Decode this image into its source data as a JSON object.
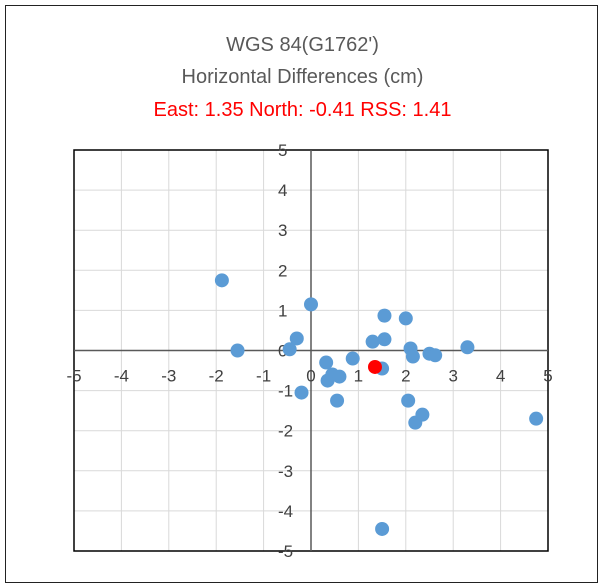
{
  "chart_data": {
    "type": "scatter",
    "title": "WGS 84(G1762')",
    "subtitle": "Horizontal Differences (cm)",
    "summary": "East: 1.35 North: -0.41 RSS: 1.41",
    "xlim": [
      -5,
      5
    ],
    "ylim": [
      -5,
      5
    ],
    "x_ticks": [
      "-5",
      "-4",
      "-3",
      "-2",
      "-1",
      "0",
      "1",
      "2",
      "3",
      "4",
      "5"
    ],
    "y_ticks": [
      "-5",
      "-4",
      "-3",
      "-2",
      "-1",
      "0",
      "1",
      "2",
      "3",
      "4",
      "5"
    ],
    "x_tick_labels": [
      "-5",
      "-4",
      "-3",
      "-2",
      "-1",
      "0",
      "1",
      "2",
      "3",
      "4",
      "5"
    ],
    "y_tick_labels": [
      "5",
      "4",
      "3",
      "2",
      "1",
      "0",
      "-1",
      "-2",
      "-3",
      "-4",
      "-5"
    ],
    "grid": true,
    "colors": {
      "points": "#5b9bd5",
      "mean": "#ff0000",
      "summary_text": "#ff0000",
      "title_text": "#595959"
    },
    "series": [
      {
        "points": [
          [
            -1.88,
            1.75
          ],
          [
            -1.55,
            0.0
          ],
          [
            -0.45,
            0.03
          ],
          [
            -0.3,
            0.3
          ],
          [
            -0.2,
            -1.05
          ],
          [
            0.0,
            1.15
          ],
          [
            0.32,
            -0.3
          ],
          [
            0.35,
            -0.75
          ],
          [
            0.45,
            -0.6
          ],
          [
            0.55,
            -1.25
          ],
          [
            0.6,
            -0.65
          ],
          [
            0.88,
            -0.2
          ],
          [
            1.3,
            0.22
          ],
          [
            1.5,
            -0.45
          ],
          [
            1.55,
            0.28
          ],
          [
            1.55,
            0.87
          ],
          [
            2.0,
            0.8
          ],
          [
            2.05,
            -1.25
          ],
          [
            2.1,
            0.05
          ],
          [
            2.15,
            -0.15
          ],
          [
            2.2,
            -1.8
          ],
          [
            2.35,
            -1.6
          ],
          [
            2.5,
            -0.08
          ],
          [
            2.62,
            -0.12
          ],
          [
            3.3,
            0.08
          ],
          [
            4.75,
            -1.7
          ],
          [
            1.5,
            -4.45
          ]
        ]
      },
      {
        "points": [
          [
            1.35,
            -0.41
          ]
        ]
      }
    ]
  }
}
